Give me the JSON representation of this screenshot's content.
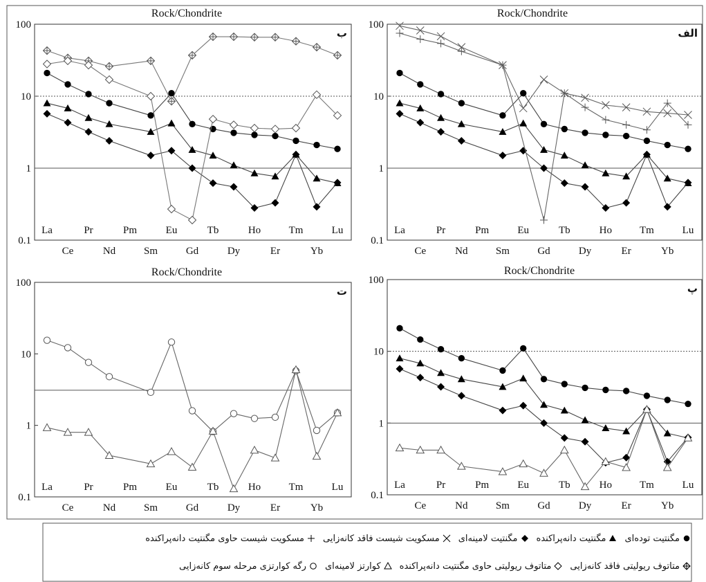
{
  "chart_data": [
    {
      "type": "line",
      "title": "Rock/Chondrite",
      "panel_label": "ب",
      "log_scale": true,
      "categories": [
        "La",
        "Ce",
        "Pr",
        "Nd",
        "Pm",
        "Sm",
        "Eu",
        "Gd",
        "Tb",
        "Dy",
        "Ho",
        "Er",
        "Tm",
        "Yb",
        "Lu"
      ],
      "ylim": [
        0.1,
        100
      ],
      "yticks": [
        0.1,
        1,
        10,
        100
      ],
      "reference_lines": [
        {
          "value": 1,
          "style": "solid"
        },
        {
          "value": 10,
          "style": "dotted"
        }
      ],
      "series": [
        {
          "marker": "circle-filled",
          "color": "#444",
          "values": [
            21,
            14.6,
            10.7,
            8,
            null,
            5.4,
            11,
            4.1,
            3.5,
            3.1,
            2.9,
            2.8,
            2.4,
            2.1,
            1.85
          ]
        },
        {
          "marker": "triangle-filled",
          "color": "#444",
          "values": [
            8,
            6.8,
            5,
            4.1,
            null,
            3.2,
            4.2,
            1.8,
            1.5,
            1.1,
            0.85,
            0.77,
            1.55,
            0.72,
            0.62
          ]
        },
        {
          "marker": "diamond-filled",
          "color": "#444",
          "values": [
            5.7,
            4.3,
            3.2,
            2.4,
            null,
            1.5,
            1.75,
            1,
            0.62,
            0.55,
            0.28,
            0.33,
            1.55,
            0.29,
            0.63
          ]
        },
        {
          "marker": "diamond-plus",
          "color": "#777",
          "values": [
            43,
            34,
            31,
            26,
            null,
            31,
            8.5,
            37,
            67,
            67,
            66,
            66,
            58,
            48,
            37
          ]
        },
        {
          "marker": "diamond-open",
          "color": "#777",
          "values": [
            28,
            31,
            27,
            17,
            null,
            10,
            0.27,
            0.19,
            4.8,
            4,
            3.6,
            3.5,
            3.6,
            10.5,
            5.4
          ]
        }
      ]
    },
    {
      "type": "line",
      "title": "Rock/Chondrite",
      "panel_label": "الف",
      "log_scale": true,
      "categories": [
        "La",
        "Ce",
        "Pr",
        "Nd",
        "Pm",
        "Sm",
        "Eu",
        "Gd",
        "Tb",
        "Dy",
        "Ho",
        "Er",
        "Tm",
        "Yb",
        "Lu"
      ],
      "ylim": [
        0.1,
        100
      ],
      "yticks": [
        0.1,
        1,
        10,
        100
      ],
      "reference_lines": [
        {
          "value": 1,
          "style": "solid"
        },
        {
          "value": 10,
          "style": "dotted"
        }
      ],
      "series": [
        {
          "marker": "circle-filled",
          "color": "#444",
          "values": [
            21,
            14.6,
            10.7,
            8,
            null,
            5.4,
            11,
            4.1,
            3.5,
            3.1,
            2.9,
            2.8,
            2.4,
            2.1,
            1.85
          ]
        },
        {
          "marker": "triangle-filled",
          "color": "#444",
          "values": [
            8,
            6.8,
            5,
            4.1,
            null,
            3.2,
            4.2,
            1.8,
            1.5,
            1.1,
            0.85,
            0.77,
            1.55,
            0.72,
            0.62
          ]
        },
        {
          "marker": "diamond-filled",
          "color": "#444",
          "values": [
            5.7,
            4.3,
            3.2,
            2.4,
            null,
            1.5,
            1.75,
            1,
            0.62,
            0.55,
            0.28,
            0.33,
            1.55,
            0.29,
            0.63
          ]
        },
        {
          "marker": "x",
          "color": "#666",
          "values": [
            95,
            82,
            68,
            48,
            null,
            27,
            6.8,
            17,
            11,
            9.5,
            7.5,
            7,
            6.1,
            5.8,
            5.5
          ]
        },
        {
          "marker": "plus",
          "color": "#666",
          "values": [
            75,
            62,
            54,
            42,
            null,
            27,
            null,
            0.19,
            11,
            7,
            4.7,
            4,
            3.4,
            8,
            4
          ]
        }
      ]
    },
    {
      "type": "line",
      "title": "Rock/Chondrite",
      "panel_label": "ت",
      "log_scale": true,
      "categories": [
        "La",
        "Ce",
        "Pr",
        "Nd",
        "Pm",
        "Sm",
        "Eu",
        "Gd",
        "Tb",
        "Dy",
        "Ho",
        "Er",
        "Tm",
        "Yb",
        "Lu"
      ],
      "ylim": [
        0.1,
        100
      ],
      "yticks": [
        0.1,
        1,
        10,
        100
      ],
      "reference_lines": [
        {
          "value": 3.1,
          "style": "solid"
        }
      ],
      "series": [
        {
          "marker": "circle-open",
          "color": "#666",
          "values": [
            15.5,
            12.2,
            7.6,
            4.8,
            null,
            2.9,
            14.6,
            1.6,
            0.82,
            1.46,
            1.25,
            1.3,
            5.8,
            0.85,
            1.5
          ]
        },
        {
          "marker": "triangle-open",
          "color": "#666",
          "values": [
            0.93,
            0.8,
            0.8,
            0.38,
            null,
            0.29,
            0.43,
            0.26,
            0.83,
            0.13,
            0.45,
            0.35,
            6,
            0.37,
            1.5
          ]
        }
      ]
    },
    {
      "type": "line",
      "title": "Rock/Chondrite",
      "panel_label": "پ",
      "log_scale": true,
      "categories": [
        "La",
        "Ce",
        "Pr",
        "Nd",
        "Pm",
        "Sm",
        "Eu",
        "Gd",
        "Tb",
        "Dy",
        "Ho",
        "Er",
        "Tm",
        "Yb",
        "Lu"
      ],
      "ylim": [
        0.1,
        100
      ],
      "yticks": [
        0.1,
        1,
        10,
        100
      ],
      "reference_lines": [
        {
          "value": 1,
          "style": "solid"
        },
        {
          "value": 10,
          "style": "dotted"
        }
      ],
      "series": [
        {
          "marker": "circle-filled",
          "color": "#444",
          "values": [
            21,
            14.6,
            10.7,
            8,
            null,
            5.4,
            11,
            4.1,
            3.5,
            3.1,
            2.9,
            2.8,
            2.4,
            2.1,
            1.85
          ]
        },
        {
          "marker": "triangle-filled",
          "color": "#444",
          "values": [
            8,
            6.8,
            5,
            4.1,
            null,
            3.2,
            4.2,
            1.8,
            1.5,
            1.1,
            0.85,
            0.77,
            1.55,
            0.72,
            0.62
          ]
        },
        {
          "marker": "diamond-filled",
          "color": "#444",
          "values": [
            5.7,
            4.3,
            3.2,
            2.4,
            null,
            1.5,
            1.75,
            1,
            0.62,
            0.55,
            0.28,
            0.33,
            1.55,
            0.29,
            0.63
          ]
        },
        {
          "marker": "triangle-open",
          "color": "#666",
          "values": [
            0.45,
            0.42,
            0.42,
            0.25,
            null,
            0.21,
            0.27,
            0.2,
            0.42,
            0.13,
            0.29,
            0.24,
            1.55,
            0.24,
            0.62
          ]
        }
      ]
    }
  ],
  "legend": {
    "rows": [
      [
        {
          "marker": "circle-filled",
          "label": "مگنتیت توده‌ای"
        },
        {
          "marker": "triangle-filled",
          "label": "مگنتیت دانه‌پراکنده"
        },
        {
          "marker": "diamond-filled",
          "label": "مگنتیت لامینه‌ای"
        },
        {
          "marker": "x",
          "label": "مسکویت شیست فاقد کانه‌زایی"
        },
        {
          "marker": "plus",
          "label": "مسکویت شیست حاوی مگنتیت دانه‌پراکنده"
        }
      ],
      [
        {
          "marker": "diamond-plus",
          "label": "متاتوف ریولیتی فاقد کانه‌زایی"
        },
        {
          "marker": "diamond-open",
          "label": "متاتوف ریولیتی حاوی مگنتیت دانه‌پراکنده"
        },
        {
          "marker": "triangle-open",
          "label": "کوارتز لامینه‌ای"
        },
        {
          "marker": "circle-open",
          "label": "رگه کوارتزی مرحله سوم کانه‌زایی"
        }
      ]
    ]
  }
}
